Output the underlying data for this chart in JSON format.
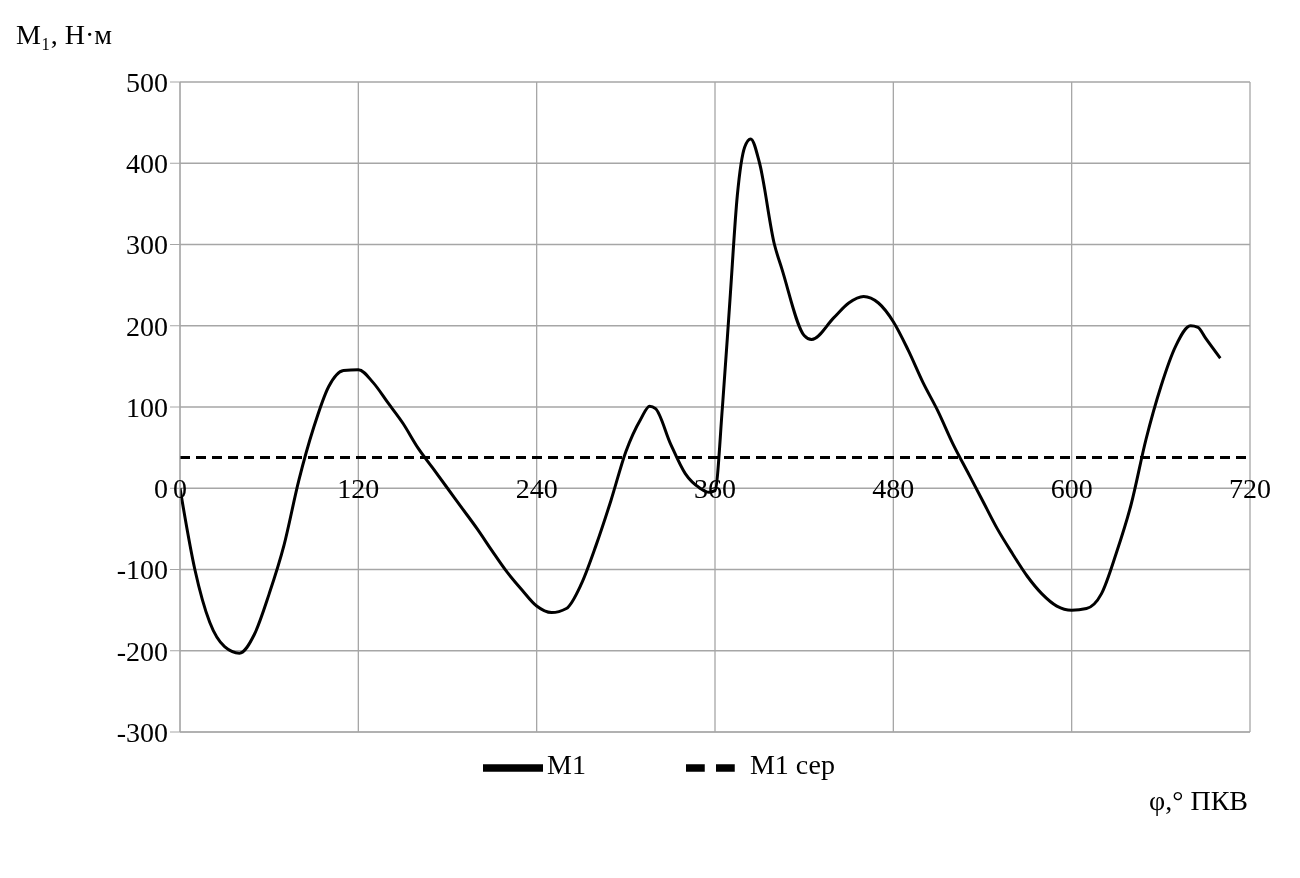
{
  "chart_data": {
    "type": "line",
    "xlabel": "φ,° ПКВ",
    "ylabel": "M₁, Н·м",
    "xlim": [
      0,
      720
    ],
    "xticks": [
      0,
      120,
      240,
      360,
      480,
      600,
      720
    ],
    "ylim": [
      -300,
      500
    ],
    "yticks": [
      -300,
      -200,
      -100,
      0,
      100,
      200,
      300,
      400,
      500
    ],
    "grid": true,
    "legend": "bottom",
    "marker": "none",
    "series": [
      {
        "name": "M1 сер",
        "color": "#000000",
        "line_style": "dashed",
        "x": [
          0,
          720
        ],
        "values": [
          38,
          38
        ]
      },
      {
        "name": "M1",
        "color": "#000000",
        "line_style": "solid",
        "x": [
          0,
          10,
          20,
          30,
          40,
          50,
          60,
          70,
          80,
          90,
          100,
          110,
          120,
          130,
          140,
          150,
          160,
          170,
          180,
          190,
          200,
          210,
          220,
          230,
          240,
          250,
          260,
          270,
          280,
          290,
          300,
          310,
          316,
          320,
          330,
          340,
          350,
          356,
          360,
          365,
          370,
          375,
          380,
          384,
          390,
          400,
          405,
          420,
          425,
          440,
          450,
          460,
          470,
          480,
          490,
          500,
          510,
          520,
          530,
          540,
          550,
          560,
          570,
          580,
          590,
          600,
          610,
          620,
          630,
          640,
          650,
          660,
          670,
          680,
          685,
          690,
          700
        ],
        "values": [
          0,
          -100,
          -165,
          -195,
          -203,
          -180,
          -130,
          -70,
          10,
          75,
          125,
          145,
          146,
          130,
          105,
          80,
          50,
          25,
          0,
          -25,
          -50,
          -77,
          -103,
          -125,
          -145,
          -153,
          -148,
          -118,
          -70,
          -15,
          45,
          85,
          101,
          98,
          55,
          18,
          0,
          -5,
          -3,
          100,
          230,
          360,
          420,
          430,
          400,
          300,
          270,
          188,
          183,
          210,
          228,
          236,
          228,
          205,
          170,
          130,
          95,
          55,
          20,
          -15,
          -50,
          -80,
          -108,
          -130,
          -145,
          -150,
          -148,
          -130,
          -80,
          -20,
          60,
          125,
          175,
          200,
          198,
          185,
          160
        ]
      }
    ]
  }
}
